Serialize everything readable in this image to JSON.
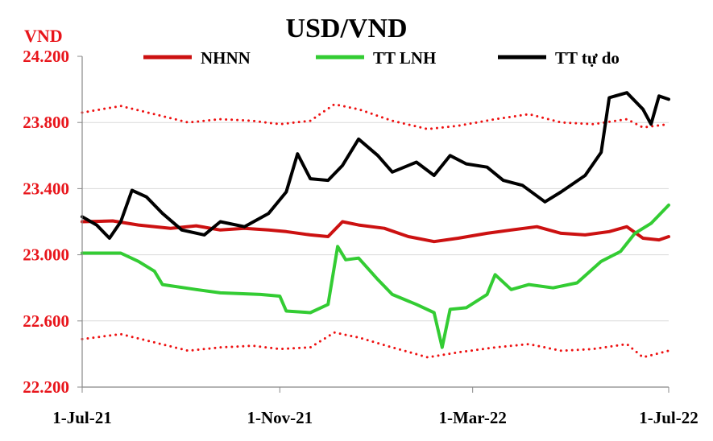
{
  "chart_data": {
    "type": "line",
    "title": "USD/VND",
    "ylabel": "VND",
    "ylim": [
      22200,
      24200
    ],
    "yticks": [
      "24.200",
      "23.800",
      "23.400",
      "23.000",
      "22.600",
      "22.200"
    ],
    "ytick_values": [
      24200,
      23800,
      23400,
      23000,
      22600,
      22200
    ],
    "xlim": [
      "2021-07-01",
      "2022-07-01"
    ],
    "xticks": [
      "1-Jul-21",
      "1-Nov-21",
      "1-Mar-22",
      "1-Jul-22"
    ],
    "xtick_values": [
      "2021-07-01",
      "2021-11-01",
      "2022-03-01",
      "2022-07-01"
    ],
    "grid": "horizontal",
    "legend_position": "top",
    "series": [
      {
        "name": "NHNN",
        "style": "solid",
        "color": "#cc1111",
        "points": [
          [
            "2021-07-01",
            23200
          ],
          [
            "2021-07-20",
            23205
          ],
          [
            "2021-08-05",
            23180
          ],
          [
            "2021-08-25",
            23160
          ],
          [
            "2021-09-10",
            23175
          ],
          [
            "2021-09-25",
            23150
          ],
          [
            "2021-10-10",
            23160
          ],
          [
            "2021-10-25",
            23150
          ],
          [
            "2021-11-05",
            23140
          ],
          [
            "2021-11-20",
            23120
          ],
          [
            "2021-12-01",
            23110
          ],
          [
            "2021-12-10",
            23200
          ],
          [
            "2021-12-20",
            23180
          ],
          [
            "2022-01-05",
            23160
          ],
          [
            "2022-01-20",
            23110
          ],
          [
            "2022-02-05",
            23080
          ],
          [
            "2022-02-20",
            23100
          ],
          [
            "2022-03-10",
            23130
          ],
          [
            "2022-03-25",
            23150
          ],
          [
            "2022-04-10",
            23170
          ],
          [
            "2022-04-25",
            23130
          ],
          [
            "2022-05-10",
            23120
          ],
          [
            "2022-05-25",
            23140
          ],
          [
            "2022-06-05",
            23170
          ],
          [
            "2022-06-15",
            23100
          ],
          [
            "2022-06-25",
            23090
          ],
          [
            "2022-07-01",
            23110
          ]
        ]
      },
      {
        "name": "",
        "style": "dotted",
        "color": "#ee1111",
        "points": [
          [
            "2021-07-01",
            23860
          ],
          [
            "2021-07-25",
            23900
          ],
          [
            "2021-08-15",
            23850
          ],
          [
            "2021-09-05",
            23800
          ],
          [
            "2021-09-25",
            23820
          ],
          [
            "2021-10-15",
            23810
          ],
          [
            "2021-11-01",
            23790
          ],
          [
            "2021-11-20",
            23810
          ],
          [
            "2021-12-05",
            23910
          ],
          [
            "2021-12-20",
            23880
          ],
          [
            "2022-01-10",
            23810
          ],
          [
            "2022-02-01",
            23760
          ],
          [
            "2022-02-20",
            23780
          ],
          [
            "2022-03-15",
            23820
          ],
          [
            "2022-04-05",
            23850
          ],
          [
            "2022-04-25",
            23800
          ],
          [
            "2022-05-15",
            23790
          ],
          [
            "2022-06-05",
            23820
          ],
          [
            "2022-06-15",
            23770
          ],
          [
            "2022-07-01",
            23790
          ]
        ]
      },
      {
        "name": "",
        "style": "dotted",
        "color": "#ee1111",
        "points": [
          [
            "2021-07-01",
            22490
          ],
          [
            "2021-07-25",
            22520
          ],
          [
            "2021-08-15",
            22470
          ],
          [
            "2021-09-05",
            22420
          ],
          [
            "2021-09-25",
            22440
          ],
          [
            "2021-10-15",
            22450
          ],
          [
            "2021-11-01",
            22430
          ],
          [
            "2021-11-20",
            22440
          ],
          [
            "2021-12-05",
            22530
          ],
          [
            "2021-12-20",
            22500
          ],
          [
            "2022-01-10",
            22440
          ],
          [
            "2022-02-01",
            22380
          ],
          [
            "2022-02-20",
            22410
          ],
          [
            "2022-03-15",
            22440
          ],
          [
            "2022-04-05",
            22460
          ],
          [
            "2022-04-25",
            22420
          ],
          [
            "2022-05-15",
            22430
          ],
          [
            "2022-06-05",
            22460
          ],
          [
            "2022-06-15",
            22380
          ],
          [
            "2022-07-01",
            22420
          ]
        ]
      },
      {
        "name": "TT LNH",
        "style": "solid",
        "color": "#33cc33",
        "points": [
          [
            "2021-07-01",
            23010
          ],
          [
            "2021-07-25",
            23010
          ],
          [
            "2021-08-05",
            22960
          ],
          [
            "2021-08-15",
            22900
          ],
          [
            "2021-08-20",
            22820
          ],
          [
            "2021-09-10",
            22790
          ],
          [
            "2021-09-25",
            22770
          ],
          [
            "2021-10-20",
            22760
          ],
          [
            "2021-11-01",
            22750
          ],
          [
            "2021-11-05",
            22660
          ],
          [
            "2021-11-20",
            22650
          ],
          [
            "2021-12-01",
            22700
          ],
          [
            "2021-12-07",
            23050
          ],
          [
            "2021-12-12",
            22970
          ],
          [
            "2021-12-20",
            22980
          ],
          [
            "2022-01-01",
            22850
          ],
          [
            "2022-01-10",
            22760
          ],
          [
            "2022-01-25",
            22700
          ],
          [
            "2022-02-05",
            22650
          ],
          [
            "2022-02-10",
            22440
          ],
          [
            "2022-02-15",
            22670
          ],
          [
            "2022-02-25",
            22680
          ],
          [
            "2022-03-10",
            22760
          ],
          [
            "2022-03-15",
            22880
          ],
          [
            "2022-03-25",
            22790
          ],
          [
            "2022-04-05",
            22820
          ],
          [
            "2022-04-20",
            22800
          ],
          [
            "2022-05-05",
            22830
          ],
          [
            "2022-05-20",
            22960
          ],
          [
            "2022-06-01",
            23020
          ],
          [
            "2022-06-10",
            23130
          ],
          [
            "2022-06-20",
            23190
          ],
          [
            "2022-07-01",
            23300
          ]
        ]
      },
      {
        "name": "TT tự do",
        "style": "solid",
        "color": "#000000",
        "points": [
          [
            "2021-07-01",
            23230
          ],
          [
            "2021-07-10",
            23180
          ],
          [
            "2021-07-18",
            23100
          ],
          [
            "2021-07-25",
            23200
          ],
          [
            "2021-08-01",
            23390
          ],
          [
            "2021-08-10",
            23350
          ],
          [
            "2021-08-20",
            23250
          ],
          [
            "2021-09-01",
            23150
          ],
          [
            "2021-09-15",
            23120
          ],
          [
            "2021-09-25",
            23200
          ],
          [
            "2021-10-10",
            23170
          ],
          [
            "2021-10-25",
            23250
          ],
          [
            "2021-11-05",
            23380
          ],
          [
            "2021-11-12",
            23610
          ],
          [
            "2021-11-20",
            23460
          ],
          [
            "2021-12-01",
            23450
          ],
          [
            "2021-12-10",
            23540
          ],
          [
            "2021-12-20",
            23700
          ],
          [
            "2022-01-01",
            23600
          ],
          [
            "2022-01-10",
            23500
          ],
          [
            "2022-01-25",
            23560
          ],
          [
            "2022-02-05",
            23480
          ],
          [
            "2022-02-15",
            23600
          ],
          [
            "2022-02-25",
            23550
          ],
          [
            "2022-03-10",
            23530
          ],
          [
            "2022-03-20",
            23450
          ],
          [
            "2022-04-01",
            23420
          ],
          [
            "2022-04-15",
            23320
          ],
          [
            "2022-04-25",
            23380
          ],
          [
            "2022-05-10",
            23480
          ],
          [
            "2022-05-20",
            23620
          ],
          [
            "2022-05-25",
            23950
          ],
          [
            "2022-06-05",
            23980
          ],
          [
            "2022-06-15",
            23880
          ],
          [
            "2022-06-20",
            23790
          ],
          [
            "2022-06-25",
            23960
          ],
          [
            "2022-07-01",
            23940
          ]
        ]
      }
    ],
    "legend": [
      {
        "name": "NHNN",
        "color": "#cc1111"
      },
      {
        "name": "TT LNH",
        "color": "#33cc33"
      },
      {
        "name": "TT tự do",
        "color": "#000000"
      }
    ]
  }
}
